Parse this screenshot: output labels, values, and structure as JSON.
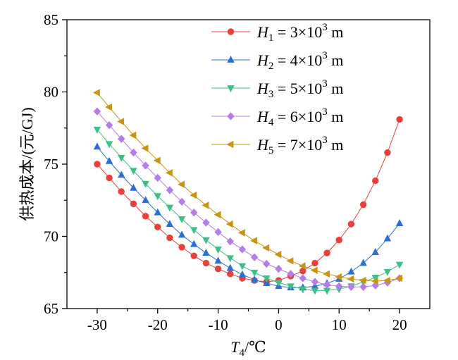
{
  "chart_data": {
    "type": "line",
    "xlabel": "T₄/℃",
    "ylabel": "供热成本/(元/GJ)",
    "xlim": [
      -35,
      25
    ],
    "ylim": [
      65,
      85
    ],
    "xticks": [
      "-30",
      "-20",
      "-10",
      "0",
      "10",
      "20"
    ],
    "yticks": [
      "65",
      "70",
      "75",
      "80",
      "85"
    ],
    "grid": false,
    "legend_position": "top-right",
    "x": [
      -30,
      -28,
      -26,
      -24,
      -22,
      -20,
      -18,
      -16,
      -14,
      -12,
      -10,
      -8,
      -6,
      -4,
      -2,
      0,
      2,
      4,
      6,
      8,
      10,
      12,
      14,
      16,
      18,
      20
    ],
    "series": [
      {
        "name": "H₁ = 3×10³ m",
        "label": {
          "var": "H",
          "sub": "1",
          "pre": " = 3×10",
          "sup": "3",
          "post": " m"
        },
        "color": "#e8413c",
        "marker": "circle",
        "values": [
          75.0,
          74.05,
          73.1,
          72.25,
          71.4,
          70.65,
          69.9,
          69.25,
          68.65,
          68.15,
          67.75,
          67.4,
          67.1,
          66.95,
          66.85,
          66.95,
          67.25,
          67.6,
          68.15,
          68.85,
          69.75,
          70.85,
          72.2,
          73.85,
          75.8,
          78.1
        ]
      },
      {
        "name": "H₂ = 4×10³ m",
        "label": {
          "var": "H",
          "sub": "2",
          "pre": " = 4×10",
          "sup": "3",
          "post": " m"
        },
        "color": "#2a6fd6",
        "marker": "triangle-up",
        "values": [
          76.2,
          75.2,
          74.25,
          73.35,
          72.5,
          71.65,
          70.85,
          70.1,
          69.45,
          68.85,
          68.3,
          67.8,
          67.35,
          67.0,
          66.75,
          66.55,
          66.45,
          66.45,
          66.55,
          66.75,
          67.05,
          67.55,
          68.15,
          68.9,
          69.85,
          70.9
        ]
      },
      {
        "name": "H₃ = 5×10³ m",
        "label": {
          "var": "H",
          "sub": "3",
          "pre": " = 5×10",
          "sup": "3",
          "post": " m"
        },
        "color": "#3dbf86",
        "marker": "triangle-down",
        "values": [
          77.4,
          76.4,
          75.45,
          74.55,
          73.65,
          72.8,
          72.0,
          71.2,
          70.45,
          69.75,
          69.1,
          68.5,
          67.95,
          67.5,
          67.1,
          66.8,
          66.55,
          66.35,
          66.25,
          66.25,
          66.35,
          66.55,
          66.85,
          67.15,
          67.55,
          68.05
        ]
      },
      {
        "name": "H₄ = 6×10³ m",
        "label": {
          "var": "H",
          "sub": "4",
          "pre": " = 6×10",
          "sup": "3",
          "post": " m"
        },
        "color": "#b57cea",
        "marker": "diamond",
        "values": [
          78.65,
          77.7,
          76.75,
          75.8,
          74.9,
          74.05,
          73.2,
          72.4,
          71.65,
          70.95,
          70.3,
          69.65,
          69.1,
          68.55,
          68.1,
          67.75,
          67.4,
          67.1,
          66.85,
          66.65,
          66.55,
          66.5,
          66.5,
          66.6,
          66.8,
          67.1
        ]
      },
      {
        "name": "H₅ = 7×10³ m",
        "label": {
          "var": "H",
          "sub": "5",
          "pre": " = 7×10",
          "sup": "3",
          "post": " m"
        },
        "color": "#c9940f",
        "marker": "triangle-left",
        "values": [
          79.95,
          78.95,
          77.95,
          77.0,
          76.1,
          75.25,
          74.4,
          73.6,
          72.85,
          72.15,
          71.5,
          70.85,
          70.25,
          69.7,
          69.2,
          68.75,
          68.3,
          67.95,
          67.65,
          67.4,
          67.2,
          67.05,
          66.95,
          66.9,
          66.95,
          67.1
        ]
      }
    ]
  }
}
